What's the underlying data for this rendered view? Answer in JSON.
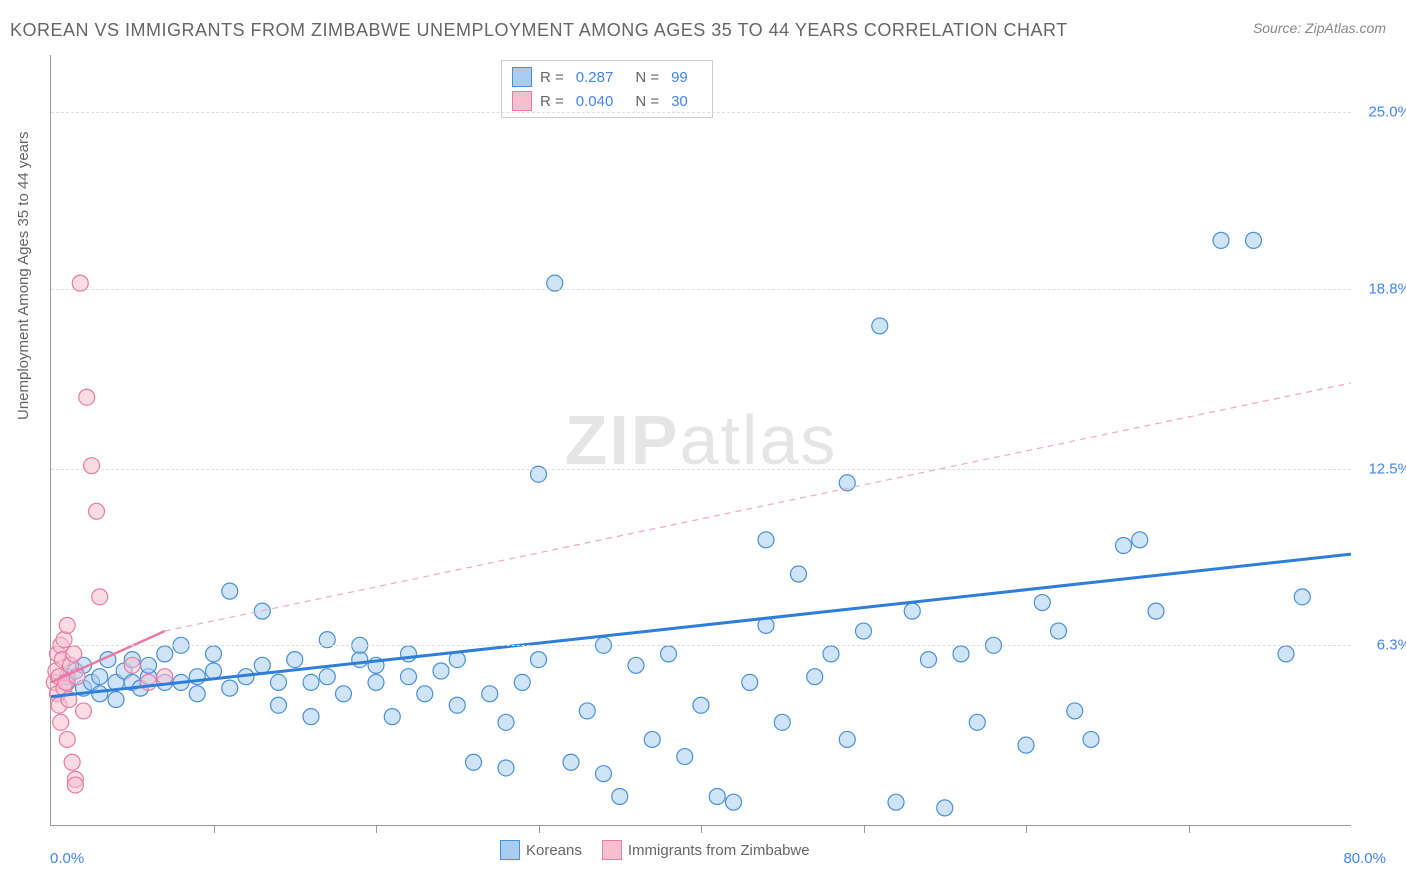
{
  "title": "KOREAN VS IMMIGRANTS FROM ZIMBABWE UNEMPLOYMENT AMONG AGES 35 TO 44 YEARS CORRELATION CHART",
  "source": "Source: ZipAtlas.com",
  "watermark_a": "ZIP",
  "watermark_b": "atlas",
  "y_axis_label": "Unemployment Among Ages 35 to 44 years",
  "chart": {
    "type": "scatter",
    "xlim": [
      0,
      80
    ],
    "ylim": [
      0,
      27
    ],
    "x_label_min": "0.0%",
    "x_label_max": "80.0%",
    "y_ticks": [
      {
        "v": 6.3,
        "label": "6.3%"
      },
      {
        "v": 12.5,
        "label": "12.5%"
      },
      {
        "v": 18.8,
        "label": "18.8%"
      },
      {
        "v": 25.0,
        "label": "25.0%"
      }
    ],
    "x_tick_positions": [
      10,
      20,
      30,
      40,
      50,
      60,
      70
    ],
    "background_color": "#ffffff",
    "grid_color": "#dddddd",
    "marker_radius": 8,
    "marker_stroke_width": 1.2,
    "series": [
      {
        "name": "Koreans",
        "fill": "#a9cdf2",
        "stroke": "#4a90d9",
        "fill_opacity": 0.55,
        "R": "0.287",
        "N": "99",
        "trend": {
          "x1": 0,
          "y1": 4.5,
          "x2": 80,
          "y2": 9.5,
          "color": "#2f7ed8",
          "width": 3,
          "dash": "none"
        },
        "extrap": null,
        "points": [
          [
            1,
            5.0
          ],
          [
            1,
            5.2
          ],
          [
            1.5,
            5.4
          ],
          [
            2,
            4.8
          ],
          [
            2,
            5.6
          ],
          [
            2.5,
            5.0
          ],
          [
            3,
            5.2
          ],
          [
            3,
            4.6
          ],
          [
            3.5,
            5.8
          ],
          [
            4,
            5.0
          ],
          [
            4,
            4.4
          ],
          [
            4.5,
            5.4
          ],
          [
            5,
            5.0
          ],
          [
            5,
            5.8
          ],
          [
            5.5,
            4.8
          ],
          [
            6,
            5.2
          ],
          [
            6,
            5.6
          ],
          [
            7,
            5.0
          ],
          [
            7,
            6.0
          ],
          [
            8,
            5.0
          ],
          [
            8,
            6.3
          ],
          [
            9,
            5.2
          ],
          [
            9,
            4.6
          ],
          [
            10,
            5.4
          ],
          [
            10,
            6.0
          ],
          [
            11,
            4.8
          ],
          [
            11,
            8.2
          ],
          [
            12,
            5.2
          ],
          [
            13,
            5.6
          ],
          [
            13,
            7.5
          ],
          [
            14,
            5.0
          ],
          [
            14,
            4.2
          ],
          [
            15,
            5.8
          ],
          [
            16,
            5.0
          ],
          [
            16,
            3.8
          ],
          [
            17,
            6.5
          ],
          [
            17,
            5.2
          ],
          [
            18,
            4.6
          ],
          [
            19,
            5.8
          ],
          [
            19,
            6.3
          ],
          [
            20,
            5.0
          ],
          [
            20,
            5.6
          ],
          [
            21,
            3.8
          ],
          [
            22,
            5.2
          ],
          [
            22,
            6.0
          ],
          [
            23,
            4.6
          ],
          [
            24,
            5.4
          ],
          [
            25,
            4.2
          ],
          [
            25,
            5.8
          ],
          [
            26,
            2.2
          ],
          [
            27,
            4.6
          ],
          [
            28,
            2.0
          ],
          [
            28,
            3.6
          ],
          [
            29,
            5.0
          ],
          [
            30,
            5.8
          ],
          [
            30,
            12.3
          ],
          [
            31,
            19.0
          ],
          [
            32,
            2.2
          ],
          [
            33,
            4.0
          ],
          [
            34,
            6.3
          ],
          [
            34,
            1.8
          ],
          [
            35,
            1.0
          ],
          [
            36,
            5.6
          ],
          [
            37,
            3.0
          ],
          [
            38,
            6.0
          ],
          [
            39,
            2.4
          ],
          [
            40,
            4.2
          ],
          [
            41,
            1.0
          ],
          [
            42,
            0.8
          ],
          [
            43,
            5.0
          ],
          [
            44,
            10.0
          ],
          [
            45,
            3.6
          ],
          [
            46,
            8.8
          ],
          [
            47,
            5.2
          ],
          [
            48,
            6.0
          ],
          [
            49,
            3.0
          ],
          [
            49,
            12.0
          ],
          [
            50,
            6.8
          ],
          [
            51,
            17.5
          ],
          [
            52,
            0.8
          ],
          [
            53,
            7.5
          ],
          [
            54,
            5.8
          ],
          [
            55,
            0.6
          ],
          [
            56,
            6.0
          ],
          [
            57,
            3.6
          ],
          [
            58,
            6.3
          ],
          [
            60,
            2.8
          ],
          [
            61,
            7.8
          ],
          [
            62,
            6.8
          ],
          [
            63,
            4.0
          ],
          [
            64,
            3.0
          ],
          [
            66,
            9.8
          ],
          [
            67,
            10.0
          ],
          [
            68,
            7.5
          ],
          [
            72,
            20.5
          ],
          [
            74,
            20.5
          ],
          [
            76,
            6.0
          ],
          [
            77,
            8.0
          ],
          [
            44,
            7.0
          ]
        ]
      },
      {
        "name": "Immigrants from Zimbabwe",
        "fill": "#f7bfd0",
        "stroke": "#e87ba3",
        "fill_opacity": 0.55,
        "R": "0.040",
        "N": "30",
        "trend": {
          "x1": 0,
          "y1": 5.0,
          "x2": 7,
          "y2": 6.8,
          "color": "#e87ba3",
          "width": 2.5,
          "dash": "none"
        },
        "extrap": {
          "x1": 7,
          "y1": 6.8,
          "x2": 80,
          "y2": 15.5,
          "color": "#f2a8c0",
          "width": 1.2,
          "dash": "6,5"
        },
        "points": [
          [
            0.2,
            5.0
          ],
          [
            0.3,
            5.4
          ],
          [
            0.4,
            4.6
          ],
          [
            0.4,
            6.0
          ],
          [
            0.5,
            5.2
          ],
          [
            0.5,
            4.2
          ],
          [
            0.6,
            6.3
          ],
          [
            0.6,
            3.6
          ],
          [
            0.7,
            5.8
          ],
          [
            0.8,
            4.8
          ],
          [
            0.8,
            6.5
          ],
          [
            0.9,
            5.0
          ],
          [
            1.0,
            3.0
          ],
          [
            1.0,
            7.0
          ],
          [
            1.1,
            4.4
          ],
          [
            1.2,
            5.6
          ],
          [
            1.3,
            2.2
          ],
          [
            1.4,
            6.0
          ],
          [
            1.5,
            1.6
          ],
          [
            1.5,
            1.4
          ],
          [
            1.6,
            5.2
          ],
          [
            1.8,
            19.0
          ],
          [
            2.0,
            4.0
          ],
          [
            2.2,
            15.0
          ],
          [
            2.5,
            12.6
          ],
          [
            2.8,
            11.0
          ],
          [
            3.0,
            8.0
          ],
          [
            5,
            5.6
          ],
          [
            6,
            5.0
          ],
          [
            7,
            5.2
          ]
        ]
      }
    ]
  },
  "r_legend_labels": {
    "R": "R =",
    "N": "N ="
  },
  "bottom_legend": [
    {
      "label": "Koreans",
      "fill": "#a9cdf2",
      "stroke": "#4a90d9"
    },
    {
      "label": "Immigrants from Zimbabwe",
      "fill": "#f7bfd0",
      "stroke": "#e87ba3"
    }
  ]
}
